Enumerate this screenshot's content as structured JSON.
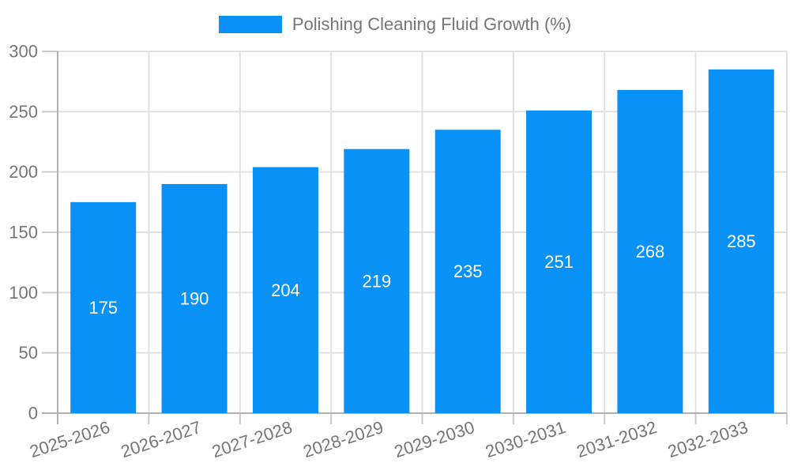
{
  "legend": {
    "label": "Polishing Cleaning Fluid Growth (%)"
  },
  "colors": {
    "bar": "#0892f8",
    "axis_text": "#757575",
    "bar_value_text": "#ffffff",
    "grid": "#e0e0e0",
    "tick": "#c9c9c9",
    "axis_line": "#b0b0b0",
    "background": "#ffffff"
  },
  "chart_data": {
    "type": "bar",
    "title": "Polishing Cleaning Fluid Growth (%)",
    "categories": [
      "2025-2026",
      "2026-2027",
      "2027-2028",
      "2028-2029",
      "2029-2030",
      "2030-2031",
      "2031-2032",
      "2032-2033"
    ],
    "values": [
      175,
      190,
      204,
      219,
      235,
      251,
      268,
      285
    ],
    "xlabel": "",
    "ylabel": "",
    "ylim": [
      0,
      300
    ],
    "yticks": [
      0,
      50,
      100,
      150,
      200,
      250,
      300
    ],
    "grid": true,
    "legend_position": "top-center",
    "value_labels": "inside-middle",
    "x_label_rotation_deg": -18
  }
}
